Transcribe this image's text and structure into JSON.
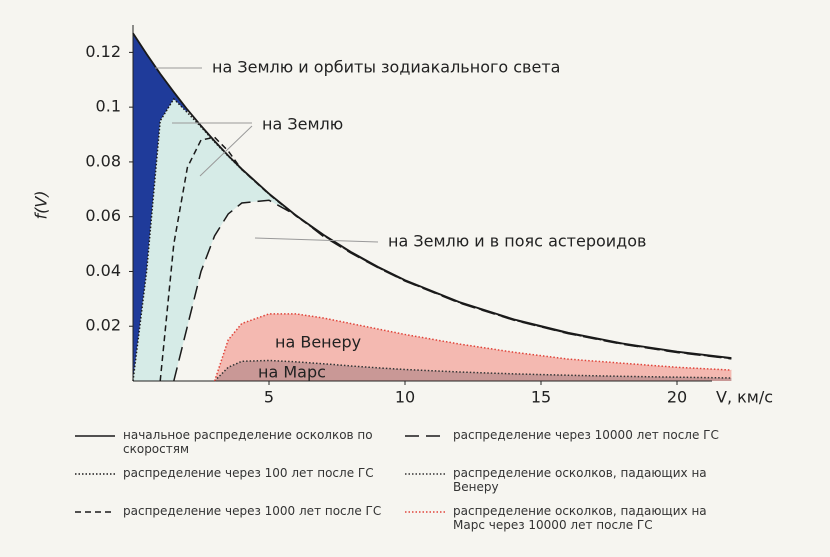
{
  "chart_data": {
    "type": "line",
    "ylabel": "f(V)",
    "xlabel": "V, км/с",
    "x": [
      0,
      0.5,
      1,
      1.5,
      2,
      2.5,
      3,
      3.5,
      4,
      5,
      6,
      7,
      8,
      9,
      10,
      12,
      14,
      16,
      18,
      20,
      22
    ],
    "xlim": [
      0,
      22.5
    ],
    "xticks": [
      5,
      10,
      15,
      20
    ],
    "ylim": [
      0,
      0.13
    ],
    "yticks": [
      0.02,
      0.04,
      0.06,
      0.08,
      0.1,
      0.12
    ],
    "series": [
      {
        "name": "начальное распределение осколков по скоростям",
        "color": "#1a1a1a",
        "dash": "solid",
        "values": [
          0.127,
          0.1194,
          0.1122,
          0.1055,
          0.0991,
          0.0932,
          0.0876,
          0.0823,
          0.0774,
          0.0684,
          0.0604,
          0.0534,
          0.0472,
          0.0417,
          0.0368,
          0.0288,
          0.0225,
          0.0176,
          0.0137,
          0.0107,
          0.0084
        ]
      },
      {
        "name": "распределение через 100 лет после ГС",
        "color": "#1a1a1a",
        "dash": "dotted",
        "values": [
          0,
          0.04,
          0.095,
          0.103,
          0.098,
          0.0928,
          0.0873,
          0.0821,
          0.0772,
          0.0683,
          0.0603,
          0.0533,
          0.0471,
          0.0416,
          0.0367,
          0.0287,
          0.0224,
          0.0175,
          0.0136,
          0.0106,
          0.0083
        ]
      },
      {
        "name": "распределение через 1000 лет после ГС",
        "color": "#1a1a1a",
        "dash": "dashed",
        "values": [
          null,
          null,
          0,
          0.05,
          0.078,
          0.088,
          0.089,
          0.084,
          0.0772,
          0.0682,
          0.0602,
          0.0532,
          0.047,
          0.0415,
          0.0366,
          0.0286,
          0.0223,
          0.0174,
          0.0135,
          0.0105,
          0.0082
        ]
      },
      {
        "name": "распределение через 10000 лет после ГС",
        "color": "#1a1a1a",
        "dash": "longdash",
        "values": [
          null,
          null,
          null,
          0,
          0.02,
          0.04,
          0.053,
          0.061,
          0.065,
          0.066,
          0.0605,
          0.0528,
          0.0468,
          0.0414,
          0.0365,
          0.0285,
          0.0222,
          0.0173,
          0.0134,
          0.0104,
          0.0081
        ]
      },
      {
        "name": "распределение осколков, падающих на Венеру",
        "color": "#333333",
        "dash": "dotted",
        "values": [
          null,
          null,
          null,
          null,
          null,
          null,
          0,
          0.005,
          0.0072,
          0.0075,
          0.007,
          0.0063,
          0.0055,
          0.0048,
          0.0042,
          0.0033,
          0.0026,
          0.0021,
          0.0017,
          0.0014,
          0.0011
        ]
      },
      {
        "name": "распределение осколков, падающих на Марс через 10000 лет после ГС",
        "color": "#e0443a",
        "dash": "dotted",
        "values": [
          null,
          null,
          null,
          null,
          null,
          null,
          0,
          0.015,
          0.021,
          0.0245,
          0.0245,
          0.023,
          0.021,
          0.019,
          0.017,
          0.0135,
          0.0105,
          0.008,
          0.0065,
          0.005,
          0.004
        ]
      }
    ],
    "annotations": [
      "на Землю и орбиты зодиакального света",
      "на Землю",
      "на Землю и в пояс астероидов",
      "на Венеру",
      "на Марс"
    ]
  }
}
